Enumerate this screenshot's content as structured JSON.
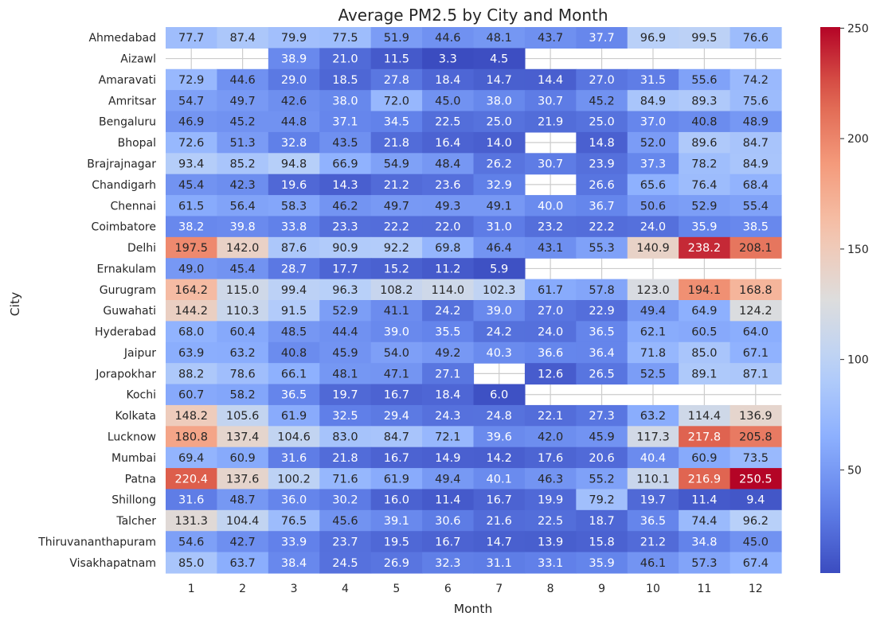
{
  "chart_data": {
    "type": "heatmap",
    "title": "Average PM2.5 by City and Month",
    "xlabel": "Month",
    "ylabel": "City",
    "x": [
      "1",
      "2",
      "3",
      "4",
      "5",
      "6",
      "7",
      "8",
      "9",
      "10",
      "11",
      "12"
    ],
    "y": [
      "Ahmedabad",
      "Aizawl",
      "Amaravati",
      "Amritsar",
      "Bengaluru",
      "Bhopal",
      "Brajrajnagar",
      "Chandigarh",
      "Chennai",
      "Coimbatore",
      "Delhi",
      "Ernakulam",
      "Gurugram",
      "Guwahati",
      "Hyderabad",
      "Jaipur",
      "Jorapokhar",
      "Kochi",
      "Kolkata",
      "Lucknow",
      "Mumbai",
      "Patna",
      "Shillong",
      "Talcher",
      "Thiruvananthapuram",
      "Visakhapatnam"
    ],
    "values": [
      [
        77.7,
        87.4,
        79.9,
        77.5,
        51.9,
        44.6,
        48.1,
        43.7,
        37.7,
        96.9,
        99.5,
        76.6
      ],
      [
        null,
        null,
        38.9,
        21.0,
        11.5,
        3.3,
        4.5,
        null,
        null,
        null,
        null,
        null
      ],
      [
        72.9,
        44.6,
        29.0,
        18.5,
        27.8,
        18.4,
        14.7,
        14.4,
        27.0,
        31.5,
        55.6,
        74.2
      ],
      [
        54.7,
        49.7,
        42.6,
        38.0,
        72.0,
        45.0,
        38.0,
        30.7,
        45.2,
        84.9,
        89.3,
        75.6
      ],
      [
        46.9,
        45.2,
        44.8,
        37.1,
        34.5,
        22.5,
        25.0,
        21.9,
        25.0,
        37.0,
        40.8,
        48.9
      ],
      [
        72.6,
        51.3,
        32.8,
        43.5,
        21.8,
        16.4,
        14.0,
        null,
        14.8,
        52.0,
        89.6,
        84.7
      ],
      [
        93.4,
        85.2,
        94.8,
        66.9,
        54.9,
        48.4,
        26.2,
        30.7,
        23.9,
        37.3,
        78.2,
        84.9
      ],
      [
        45.4,
        42.3,
        19.6,
        14.3,
        21.2,
        23.6,
        32.9,
        null,
        26.6,
        65.6,
        76.4,
        68.4
      ],
      [
        61.5,
        56.4,
        58.3,
        46.2,
        49.7,
        49.3,
        49.1,
        40.0,
        36.7,
        50.6,
        52.9,
        55.4
      ],
      [
        38.2,
        39.8,
        33.8,
        23.3,
        22.2,
        22.0,
        31.0,
        23.2,
        22.2,
        24.0,
        35.9,
        38.5
      ],
      [
        197.5,
        142.0,
        87.6,
        90.9,
        92.2,
        69.8,
        46.4,
        43.1,
        55.3,
        140.9,
        238.2,
        208.1
      ],
      [
        49.0,
        45.4,
        28.7,
        17.7,
        15.2,
        11.2,
        5.9,
        null,
        null,
        null,
        null,
        null
      ],
      [
        164.2,
        115.0,
        99.4,
        96.3,
        108.2,
        114.0,
        102.3,
        61.7,
        57.8,
        123.0,
        194.1,
        168.8
      ],
      [
        144.2,
        110.3,
        91.5,
        52.9,
        41.1,
        24.2,
        39.0,
        27.0,
        22.9,
        49.4,
        64.9,
        124.2
      ],
      [
        68.0,
        60.4,
        48.5,
        44.4,
        39.0,
        35.5,
        24.2,
        24.0,
        36.5,
        62.1,
        60.5,
        64.0
      ],
      [
        63.9,
        63.2,
        40.8,
        45.9,
        54.0,
        49.2,
        40.3,
        36.6,
        36.4,
        71.8,
        85.0,
        67.1
      ],
      [
        88.2,
        78.6,
        66.1,
        48.1,
        47.1,
        27.1,
        null,
        12.6,
        26.5,
        52.5,
        89.1,
        87.1
      ],
      [
        60.7,
        58.2,
        36.5,
        19.7,
        16.7,
        18.4,
        6.0,
        null,
        null,
        null,
        null,
        null
      ],
      [
        148.2,
        105.6,
        61.9,
        32.5,
        29.4,
        24.3,
        24.8,
        22.1,
        27.3,
        63.2,
        114.4,
        136.9
      ],
      [
        180.8,
        137.4,
        104.6,
        83.0,
        84.7,
        72.1,
        39.6,
        42.0,
        45.9,
        117.3,
        217.8,
        205.8
      ],
      [
        69.4,
        60.9,
        31.6,
        21.8,
        16.7,
        14.9,
        14.2,
        17.6,
        20.6,
        40.4,
        60.9,
        73.5
      ],
      [
        220.4,
        137.6,
        100.2,
        71.6,
        61.9,
        49.4,
        40.1,
        46.3,
        55.2,
        110.1,
        216.9,
        250.5
      ],
      [
        31.6,
        48.7,
        36.0,
        30.2,
        16.0,
        11.4,
        16.7,
        19.9,
        79.2,
        19.7,
        11.4,
        9.4
      ],
      [
        131.3,
        104.4,
        76.5,
        45.6,
        39.1,
        30.6,
        21.6,
        22.5,
        18.7,
        36.5,
        74.4,
        96.2
      ],
      [
        54.6,
        42.7,
        33.9,
        23.7,
        19.5,
        16.7,
        14.7,
        13.9,
        15.8,
        21.2,
        34.8,
        45.0
      ],
      [
        85.0,
        63.7,
        38.4,
        24.5,
        26.9,
        32.3,
        31.1,
        33.1,
        35.9,
        46.1,
        57.3,
        67.4
      ]
    ],
    "colormap": "coolwarm",
    "colorbar": {
      "min": 3.3,
      "max": 250.5,
      "ticks": [
        50,
        100,
        150,
        200,
        250
      ]
    },
    "grid": true
  }
}
